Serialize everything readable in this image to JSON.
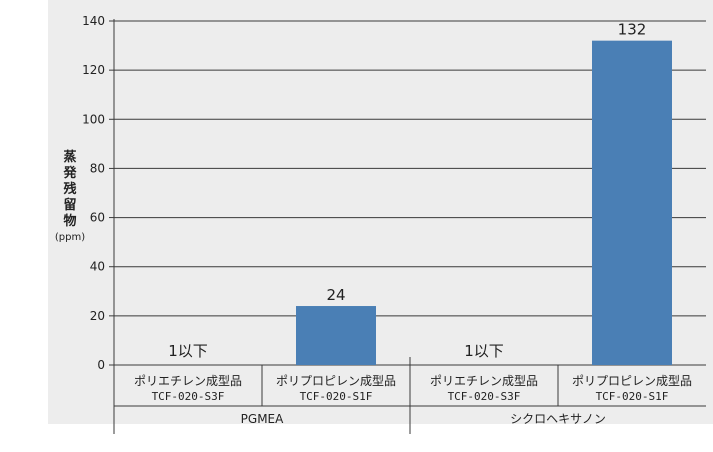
{
  "chart_data": {
    "type": "bar",
    "ylabel_chars": [
      "蒸",
      "発",
      "残",
      "留",
      "物"
    ],
    "ylabel_unit": "(ppm)",
    "ylim": [
      0,
      140
    ],
    "yticks": [
      0,
      20,
      40,
      60,
      80,
      100,
      120,
      140
    ],
    "grid": true,
    "bar_color": "#4a7fb5",
    "groups": [
      {
        "name": "PGMEA",
        "categories": [
          {
            "name": "ポリエチレン成型品",
            "code": "TCF-020-S3F",
            "value": 0,
            "label": "1以下"
          },
          {
            "name": "ポリプロピレン成型品",
            "code": "TCF-020-S1F",
            "value": 24,
            "label": "24"
          }
        ]
      },
      {
        "name": "シクロヘキサノン",
        "categories": [
          {
            "name": "ポリエチレン成型品",
            "code": "TCF-020-S3F",
            "value": 0,
            "label": "1以下"
          },
          {
            "name": "ポリプロピレン成型品",
            "code": "TCF-020-S1F",
            "value": 132,
            "label": "132"
          }
        ]
      }
    ]
  }
}
